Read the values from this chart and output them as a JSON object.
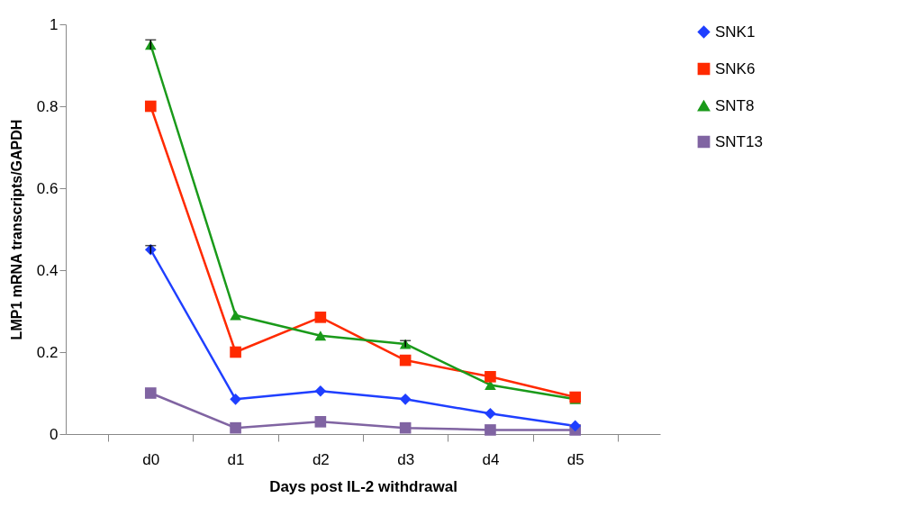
{
  "chart_data": {
    "type": "line",
    "xlabel": "Days post IL-2 withdrawal",
    "ylabel": "LMP1 mRNA transcripts/GAPDH",
    "categories": [
      "d0",
      "d1",
      "d2",
      "d3",
      "d4",
      "d5"
    ],
    "series": [
      {
        "name": "SNK1",
        "color": "#1f3fff",
        "marker": "diamond",
        "values": [
          0.45,
          0.085,
          0.105,
          0.085,
          0.05,
          0.02
        ],
        "errors": [
          0.01,
          null,
          null,
          null,
          null,
          null
        ]
      },
      {
        "name": "SNK6",
        "color": "#ff2a00",
        "marker": "square",
        "values": [
          0.8,
          0.2,
          0.285,
          0.18,
          0.14,
          0.09
        ]
      },
      {
        "name": "SNT8",
        "color": "#1a9a1a",
        "marker": "triangle",
        "values": [
          0.95,
          0.29,
          0.24,
          0.22,
          0.12,
          0.085
        ],
        "errors": [
          0.012,
          null,
          null,
          0.008,
          null,
          null
        ]
      },
      {
        "name": "SNT13",
        "color": "#8064a2",
        "marker": "square",
        "values": [
          0.1,
          0.015,
          0.03,
          0.015,
          0.01,
          0.01
        ]
      }
    ],
    "ylim": [
      0,
      1
    ],
    "yticks": [
      0,
      0.2,
      0.4,
      0.6,
      0.8,
      1
    ],
    "grid": false,
    "legend": "right",
    "line_style": "solid"
  }
}
